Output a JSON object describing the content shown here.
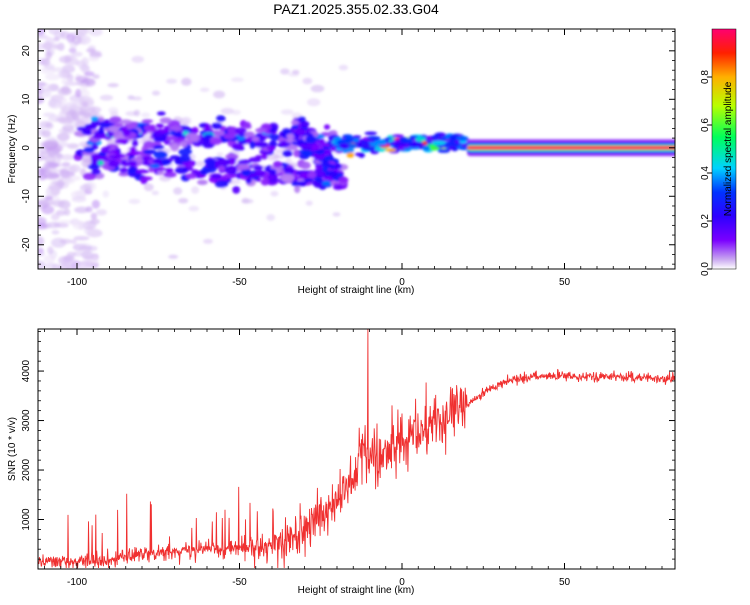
{
  "title": "PAZ1.2025.355.02.33.G04",
  "chart_data": [
    {
      "type": "heatmap",
      "name": "spectrogram",
      "xlabel": "Height of straight line (km)",
      "ylabel": "Frequency (Hz)",
      "xlim": [
        -112,
        84
      ],
      "ylim": [
        -25,
        24.5
      ],
      "xticks": [
        -100,
        -50,
        0,
        50
      ],
      "yticks": [
        -20,
        -10,
        0,
        10,
        20
      ],
      "colorbar": {
        "label": "Normalized spectral amplitude",
        "range": [
          0,
          1
        ],
        "ticks": [
          0.0,
          0.2,
          0.4,
          0.6,
          0.8
        ],
        "tick_labels": [
          "0.0",
          "0.2",
          "0.4",
          "0.6",
          "0.8"
        ],
        "colors": [
          "#ffffff",
          "#c9a8f0",
          "#7a00ff",
          "#2d00ff",
          "#0033ff",
          "#00d2ff",
          "#00ff5a",
          "#b8ff00",
          "#ffb000",
          "#ff2000",
          "#ff0070"
        ]
      },
      "features": [
        {
          "x_range": [
            -112,
            -98
          ],
          "freq_range": [
            -25,
            24.5
          ],
          "amplitude": 0.08,
          "description_free": true
        },
        {
          "x_range": [
            -100,
            -20
          ],
          "freq_center": [
            3.5,
            -3.5
          ],
          "amplitude": 0.3
        },
        {
          "x_range": [
            -33,
            -18
          ],
          "freq_center": [
            5,
            -6
          ],
          "amplitude": 0.3
        },
        {
          "x_range": [
            -20,
            20
          ],
          "freq_center": 0.8,
          "amplitude": 0.5
        },
        {
          "x_range": [
            20,
            84
          ],
          "freq_center": 0,
          "amplitude": 1.0
        }
      ]
    },
    {
      "type": "line",
      "name": "snr",
      "xlabel": "Height of straight line (km)",
      "ylabel": "SNR (10 * v/v)",
      "xlim": [
        -112,
        84
      ],
      "ylim": [
        0,
        4850
      ],
      "xticks": [
        -100,
        -50,
        0,
        50
      ],
      "yticks": [
        1000,
        2000,
        3000,
        4000
      ],
      "color": "#f03030",
      "x": [
        -112,
        -100,
        -90,
        -80,
        -70,
        -60,
        -50,
        -40,
        -35,
        -30,
        -25,
        -20,
        -15,
        -12,
        -10,
        -5,
        0,
        5,
        10,
        15,
        20,
        25,
        30,
        35,
        40,
        50,
        60,
        70,
        80,
        84
      ],
      "values": [
        150,
        150,
        200,
        280,
        370,
        420,
        400,
        450,
        550,
        800,
        1100,
        1400,
        1800,
        2600,
        2200,
        2400,
        2600,
        2800,
        3000,
        3100,
        3300,
        3550,
        3750,
        3850,
        3880,
        3900,
        3890,
        3880,
        3850,
        3850
      ],
      "peak": {
        "x": -10.5,
        "value": 4850
      }
    }
  ]
}
